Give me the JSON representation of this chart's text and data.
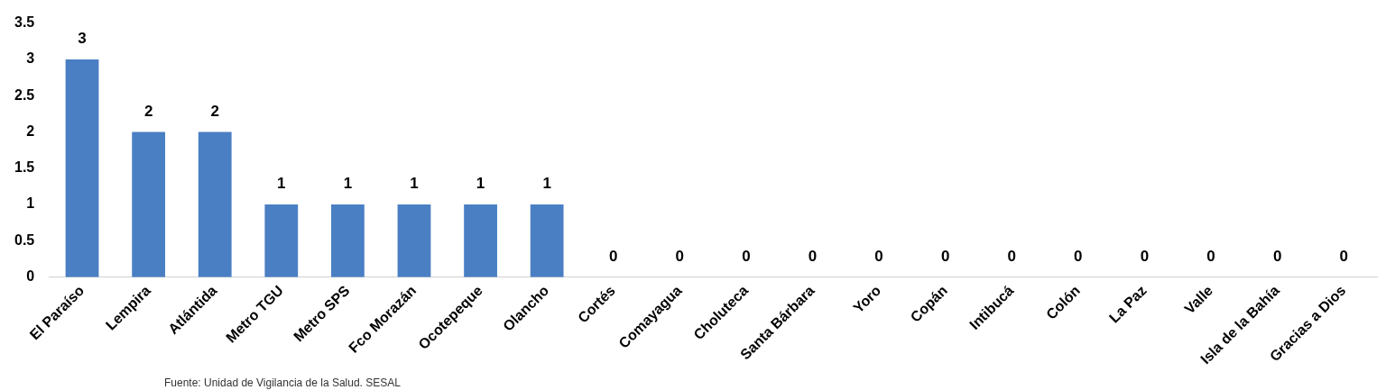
{
  "chart_data": {
    "type": "bar",
    "categories": [
      "El Paraíso",
      "Lempira",
      "Atlántida",
      "Metro TGU",
      "Metro SPS",
      "Fco Morazán",
      "Ocotepeque",
      "Olancho",
      "Cortés",
      "Comayagua",
      "Choluteca",
      "Santa Bárbara",
      "Yoro",
      "Copán",
      "Intibucá",
      "Colón",
      "La Paz",
      "Valle",
      "Isla de la Bahía",
      "Gracias a Dios"
    ],
    "values": [
      3,
      2,
      2,
      1,
      1,
      1,
      1,
      1,
      0,
      0,
      0,
      0,
      0,
      0,
      0,
      0,
      0,
      0,
      0,
      0
    ],
    "color": "#4a7fc3",
    "ylim": [
      0,
      3.5
    ],
    "yticks": [
      0,
      0.5,
      1,
      1.5,
      2,
      2.5,
      3,
      3.5
    ],
    "grid": false,
    "legend": false,
    "data_labels": true,
    "annotations": [
      "Fuente: Unidad de Vigilancia de la Salud. SESAL"
    ]
  }
}
